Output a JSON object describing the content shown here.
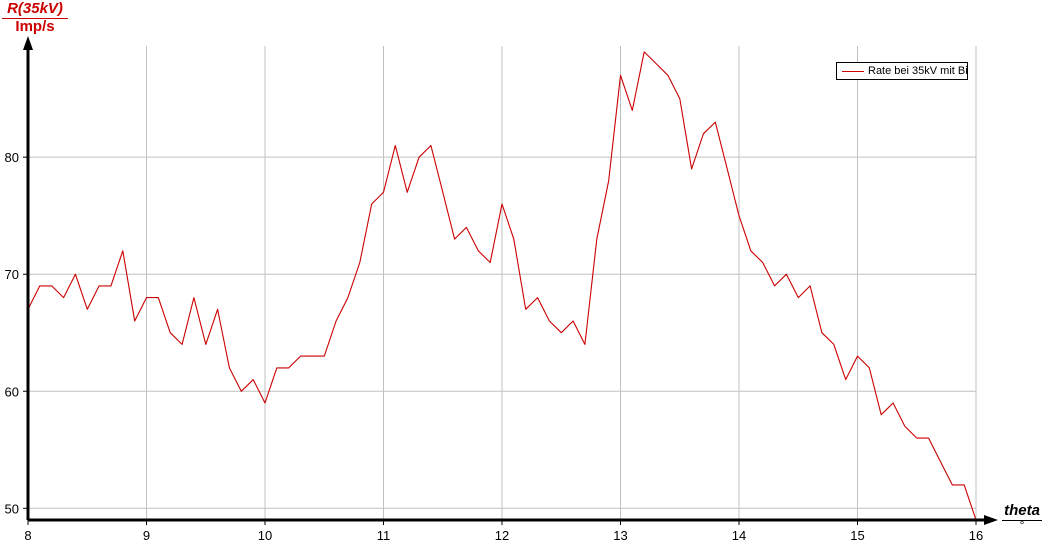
{
  "chart_data": {
    "type": "line",
    "ylabel": "R(35kV)",
    "yunit": "Imp/s",
    "xlabel": "theta",
    "xunit": "°",
    "xlim": [
      8,
      16
    ],
    "ylim": [
      49,
      89.5
    ],
    "xticks": [
      8,
      9,
      10,
      11,
      12,
      13,
      14,
      15,
      16
    ],
    "yticks": [
      50,
      60,
      70,
      80
    ],
    "grid": true,
    "legend_position": "top-right",
    "colors": {
      "series": "#cc0000",
      "axes": "#000000",
      "grid": "#c0c0c0",
      "ylabel_text": "#cc0000"
    },
    "series": [
      {
        "name": "Rate bei 35kV mit Bi",
        "x": [
          8.0,
          8.1,
          8.2,
          8.3,
          8.4,
          8.5,
          8.6,
          8.7,
          8.8,
          8.9,
          9.0,
          9.1,
          9.2,
          9.3,
          9.4,
          9.5,
          9.6,
          9.7,
          9.8,
          9.9,
          10.0,
          10.1,
          10.2,
          10.3,
          10.4,
          10.5,
          10.6,
          10.7,
          10.8,
          10.9,
          11.0,
          11.1,
          11.2,
          11.3,
          11.4,
          11.5,
          11.6,
          11.7,
          11.8,
          11.9,
          12.0,
          12.1,
          12.2,
          12.3,
          12.4,
          12.5,
          12.6,
          12.7,
          12.8,
          12.9,
          13.0,
          13.1,
          13.2,
          13.3,
          13.4,
          13.5,
          13.6,
          13.7,
          13.8,
          13.9,
          14.0,
          14.1,
          14.2,
          14.3,
          14.4,
          14.5,
          14.6,
          14.7,
          14.8,
          14.9,
          15.0,
          15.1,
          15.2,
          15.3,
          15.4,
          15.5,
          15.6,
          15.7,
          15.8,
          15.9,
          16.0
        ],
        "y": [
          67,
          69,
          69,
          68,
          70,
          67,
          69,
          69,
          72,
          66,
          68,
          68,
          65,
          64,
          68,
          64,
          67,
          62,
          60,
          61,
          59,
          62,
          62,
          63,
          63,
          63,
          66,
          68,
          71,
          76,
          77,
          81,
          77,
          80,
          81,
          77,
          73,
          74,
          72,
          71,
          76,
          73,
          67,
          68,
          66,
          65,
          66,
          64,
          73,
          78,
          87,
          84,
          89,
          88,
          87,
          85,
          79,
          82,
          83,
          79,
          75,
          72,
          71,
          69,
          70,
          68,
          69,
          65,
          64,
          61,
          63,
          62,
          58,
          59,
          57,
          56,
          56,
          54,
          52,
          52,
          49
        ]
      }
    ]
  }
}
